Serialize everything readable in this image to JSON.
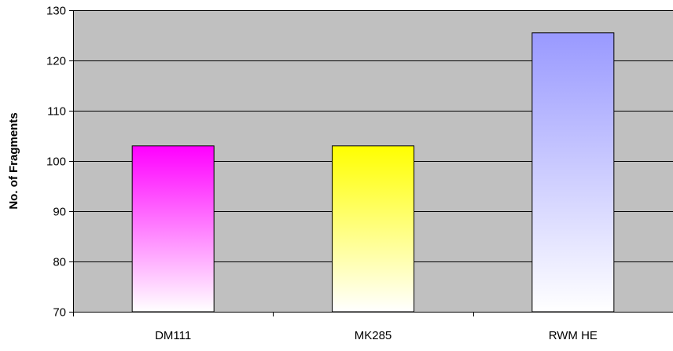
{
  "chart_data": {
    "type": "bar",
    "title": "",
    "xlabel": "",
    "ylabel": "No. of Fragments",
    "categories": [
      "DM111",
      "MK285",
      "RWM HE"
    ],
    "values": [
      103,
      103,
      125.5
    ],
    "ylim": [
      70,
      130
    ],
    "yticks": [
      70,
      80,
      90,
      100,
      110,
      120,
      130
    ],
    "grid": true,
    "legend": "none",
    "colors": {
      "plot_background": "#c0c0c0",
      "gridline": "#000000",
      "bar_gradients": [
        {
          "top": "#ff00ff",
          "bottom": "#ffffff"
        },
        {
          "top": "#ffff00",
          "bottom": "#ffffff"
        },
        {
          "top": "#9999ff",
          "bottom": "#ffffff"
        }
      ]
    }
  }
}
